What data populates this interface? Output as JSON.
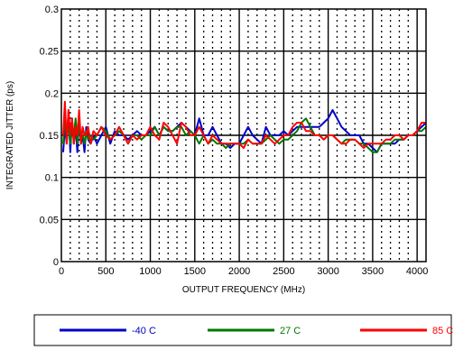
{
  "chart_data": {
    "type": "line",
    "title": "",
    "xlabel": "OUTPUT FREQUENCY (MHz)",
    "ylabel": "INTEGRATED JITTER (ps)",
    "xlim": [
      0,
      4100
    ],
    "ylim": [
      0,
      0.3
    ],
    "xticks": [
      0,
      500,
      1000,
      1500,
      2000,
      2500,
      3000,
      3500,
      4000
    ],
    "xtick_labels": [
      "0",
      "500",
      "1000",
      "1500",
      "2000",
      "2500",
      "3000",
      "3500",
      "4000"
    ],
    "yticks": [
      0,
      0.05,
      0.1,
      0.15,
      0.2,
      0.25,
      0.3
    ],
    "ytick_labels": [
      "0",
      "0.05",
      "0.1",
      "0.15",
      "0.2",
      "0.25",
      "0.3"
    ],
    "grid": true,
    "legend_position": "bottom",
    "series": [
      {
        "name": "-40 C",
        "color": "#0000c8",
        "x": [
          20,
          40,
          60,
          80,
          100,
          120,
          140,
          160,
          180,
          200,
          220,
          240,
          260,
          280,
          300,
          330,
          360,
          400,
          450,
          500,
          550,
          600,
          650,
          700,
          750,
          800,
          850,
          900,
          950,
          1000,
          1050,
          1100,
          1150,
          1200,
          1250,
          1300,
          1350,
          1400,
          1450,
          1500,
          1550,
          1600,
          1650,
          1700,
          1750,
          1800,
          1850,
          1900,
          1950,
          2000,
          2050,
          2100,
          2150,
          2200,
          2250,
          2300,
          2350,
          2400,
          2450,
          2500,
          2550,
          2600,
          2650,
          2700,
          2750,
          2800,
          2850,
          2900,
          2950,
          3000,
          3050,
          3100,
          3150,
          3200,
          3250,
          3300,
          3350,
          3400,
          3450,
          3500,
          3550,
          3600,
          3650,
          3700,
          3750,
          3800,
          3850,
          3900,
          3950,
          4000,
          4050,
          4100
        ],
        "y": [
          0.13,
          0.16,
          0.14,
          0.18,
          0.13,
          0.17,
          0.14,
          0.16,
          0.13,
          0.17,
          0.14,
          0.15,
          0.13,
          0.16,
          0.145,
          0.14,
          0.15,
          0.14,
          0.15,
          0.16,
          0.14,
          0.155,
          0.15,
          0.15,
          0.145,
          0.15,
          0.155,
          0.15,
          0.15,
          0.155,
          0.16,
          0.15,
          0.16,
          0.155,
          0.155,
          0.16,
          0.165,
          0.16,
          0.155,
          0.15,
          0.17,
          0.15,
          0.15,
          0.16,
          0.15,
          0.14,
          0.14,
          0.135,
          0.14,
          0.14,
          0.15,
          0.16,
          0.15,
          0.145,
          0.14,
          0.16,
          0.15,
          0.15,
          0.15,
          0.155,
          0.15,
          0.155,
          0.16,
          0.16,
          0.16,
          0.16,
          0.16,
          0.16,
          0.165,
          0.17,
          0.18,
          0.17,
          0.16,
          0.155,
          0.15,
          0.15,
          0.15,
          0.14,
          0.14,
          0.135,
          0.13,
          0.14,
          0.14,
          0.14,
          0.14,
          0.145,
          0.145,
          0.15,
          0.15,
          0.155,
          0.16,
          0.165
        ]
      },
      {
        "name": "27 C",
        "color": "#007800",
        "x": [
          20,
          40,
          60,
          80,
          100,
          120,
          140,
          160,
          180,
          200,
          220,
          240,
          260,
          280,
          300,
          330,
          360,
          400,
          450,
          500,
          550,
          600,
          650,
          700,
          750,
          800,
          850,
          900,
          950,
          1000,
          1050,
          1100,
          1150,
          1200,
          1250,
          1300,
          1350,
          1400,
          1450,
          1500,
          1550,
          1600,
          1650,
          1700,
          1750,
          1800,
          1850,
          1900,
          1950,
          2000,
          2050,
          2100,
          2150,
          2200,
          2250,
          2300,
          2350,
          2400,
          2450,
          2500,
          2550,
          2600,
          2650,
          2700,
          2750,
          2800,
          2850,
          2900,
          2950,
          3000,
          3050,
          3100,
          3150,
          3200,
          3250,
          3300,
          3350,
          3400,
          3450,
          3500,
          3550,
          3600,
          3650,
          3700,
          3750,
          3800,
          3850,
          3900,
          3950,
          4000,
          4050,
          4100
        ],
        "y": [
          0.14,
          0.17,
          0.15,
          0.16,
          0.14,
          0.16,
          0.15,
          0.17,
          0.14,
          0.16,
          0.15,
          0.15,
          0.14,
          0.155,
          0.145,
          0.15,
          0.145,
          0.15,
          0.16,
          0.155,
          0.145,
          0.15,
          0.155,
          0.15,
          0.14,
          0.15,
          0.15,
          0.145,
          0.15,
          0.15,
          0.16,
          0.15,
          0.16,
          0.155,
          0.155,
          0.16,
          0.16,
          0.15,
          0.155,
          0.15,
          0.14,
          0.15,
          0.14,
          0.145,
          0.14,
          0.14,
          0.135,
          0.14,
          0.14,
          0.14,
          0.14,
          0.145,
          0.14,
          0.14,
          0.14,
          0.145,
          0.15,
          0.145,
          0.14,
          0.145,
          0.145,
          0.15,
          0.155,
          0.165,
          0.17,
          0.16,
          0.15,
          0.15,
          0.145,
          0.15,
          0.15,
          0.145,
          0.14,
          0.145,
          0.145,
          0.145,
          0.14,
          0.14,
          0.135,
          0.13,
          0.13,
          0.14,
          0.14,
          0.14,
          0.145,
          0.145,
          0.145,
          0.15,
          0.15,
          0.155,
          0.155,
          0.16
        ]
      },
      {
        "name": "85 C",
        "color": "#ff0000",
        "x": [
          20,
          40,
          60,
          80,
          100,
          120,
          140,
          160,
          180,
          200,
          220,
          240,
          260,
          280,
          300,
          330,
          360,
          400,
          450,
          500,
          550,
          600,
          650,
          700,
          750,
          800,
          850,
          900,
          950,
          1000,
          1050,
          1100,
          1150,
          1200,
          1250,
          1300,
          1350,
          1400,
          1450,
          1500,
          1550,
          1600,
          1650,
          1700,
          1750,
          1800,
          1850,
          1900,
          1950,
          2000,
          2050,
          2100,
          2150,
          2200,
          2250,
          2300,
          2350,
          2400,
          2450,
          2500,
          2550,
          2600,
          2650,
          2700,
          2750,
          2800,
          2850,
          2900,
          2950,
          3000,
          3050,
          3100,
          3150,
          3200,
          3250,
          3300,
          3350,
          3400,
          3450,
          3500,
          3550,
          3600,
          3650,
          3700,
          3750,
          3800,
          3850,
          3900,
          3950,
          4000,
          4050,
          4100
        ],
        "y": [
          0.15,
          0.19,
          0.14,
          0.18,
          0.15,
          0.17,
          0.14,
          0.16,
          0.15,
          0.18,
          0.14,
          0.16,
          0.15,
          0.15,
          0.16,
          0.14,
          0.155,
          0.15,
          0.16,
          0.15,
          0.145,
          0.15,
          0.16,
          0.15,
          0.14,
          0.15,
          0.145,
          0.15,
          0.15,
          0.16,
          0.15,
          0.145,
          0.165,
          0.16,
          0.15,
          0.14,
          0.165,
          0.16,
          0.15,
          0.15,
          0.16,
          0.15,
          0.14,
          0.15,
          0.145,
          0.14,
          0.14,
          0.14,
          0.14,
          0.14,
          0.135,
          0.145,
          0.14,
          0.14,
          0.14,
          0.15,
          0.145,
          0.14,
          0.145,
          0.15,
          0.15,
          0.16,
          0.165,
          0.165,
          0.155,
          0.155,
          0.15,
          0.15,
          0.145,
          0.15,
          0.15,
          0.145,
          0.14,
          0.14,
          0.145,
          0.145,
          0.14,
          0.135,
          0.14,
          0.14,
          0.14,
          0.14,
          0.145,
          0.145,
          0.15,
          0.15,
          0.145,
          0.15,
          0.15,
          0.155,
          0.165,
          0.165
        ]
      }
    ]
  }
}
